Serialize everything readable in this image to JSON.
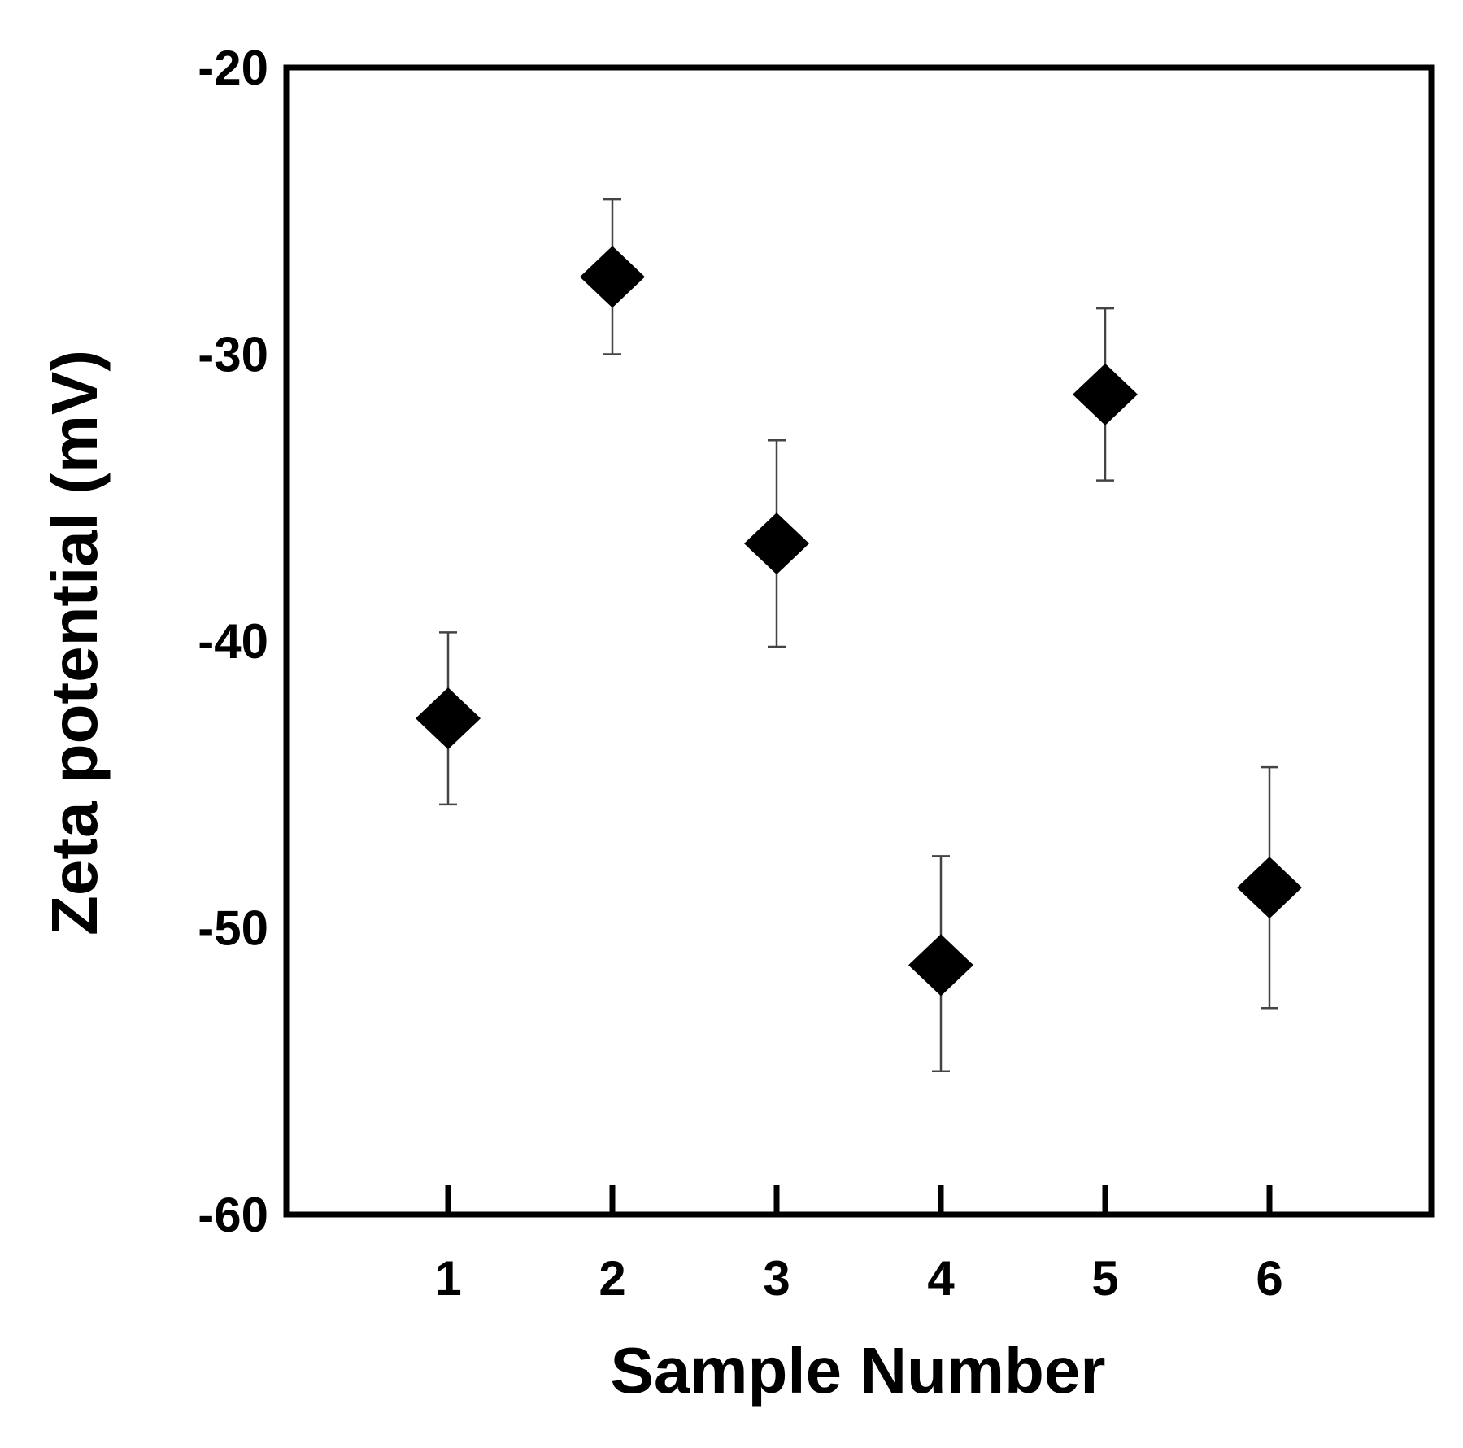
{
  "chart_data": {
    "type": "scatter",
    "title": "",
    "xlabel": "Sample Number",
    "ylabel": "Zeta potential (mV)",
    "xlim": [
      0,
      7
    ],
    "ylim": [
      -60,
      -20
    ],
    "x_ticks": [
      1,
      2,
      3,
      4,
      5,
      6
    ],
    "x_tick_labels": [
      "1",
      "2",
      "3",
      "4",
      "5",
      "6"
    ],
    "y_ticks": [
      -20,
      -30,
      -40,
      -50,
      -60
    ],
    "y_tick_labels": [
      "-20",
      "-30",
      "-40",
      "-50",
      "-60"
    ],
    "grid": false,
    "legend": "none",
    "marker": "diamond",
    "marker_color": "#000000",
    "error_bar_color": "#444444",
    "points": [
      {
        "x": 1,
        "y": -42.7,
        "err_low": -45.7,
        "err_high": -39.7
      },
      {
        "x": 2,
        "y": -27.3,
        "err_low": -30.0,
        "err_high": -24.6
      },
      {
        "x": 3,
        "y": -36.6,
        "err_low": -40.2,
        "err_high": -33.0
      },
      {
        "x": 4,
        "y": -51.3,
        "err_low": -55.0,
        "err_high": -47.5
      },
      {
        "x": 5,
        "y": -31.4,
        "err_low": -34.4,
        "err_high": -28.4
      },
      {
        "x": 6,
        "y": -48.6,
        "err_low": -52.8,
        "err_high": -44.4
      }
    ]
  }
}
